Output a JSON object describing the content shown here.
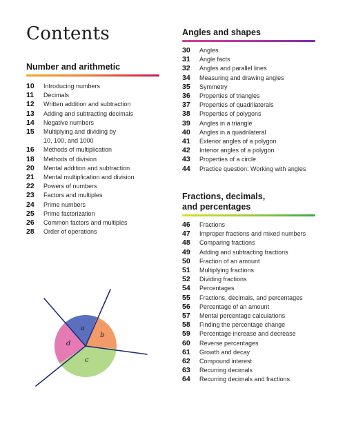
{
  "page_title": "Contents",
  "sections": {
    "number": {
      "title": "Number and arithmetic",
      "items": [
        {
          "page": "10",
          "label": "Introducing numbers"
        },
        {
          "page": "11",
          "label": "Decimals"
        },
        {
          "page": "12",
          "label": "Written addition and subtraction"
        },
        {
          "page": "13",
          "label": "Adding and subtracting decimals"
        },
        {
          "page": "14",
          "label": "Negative numbers"
        },
        {
          "page": "15",
          "label": "Multiplying and dividing by\n10, 100, and 1000"
        },
        {
          "page": "16",
          "label": "Methods of multiplication"
        },
        {
          "page": "18",
          "label": "Methods of division"
        },
        {
          "page": "20",
          "label": "Mental addition and subtraction"
        },
        {
          "page": "21",
          "label": "Mental multiplication and division"
        },
        {
          "page": "22",
          "label": "Powers of numbers"
        },
        {
          "page": "23",
          "label": "Factors and multiples"
        },
        {
          "page": "24",
          "label": "Prime numbers"
        },
        {
          "page": "25",
          "label": "Prime factorization"
        },
        {
          "page": "26",
          "label": "Common factors and multiples"
        },
        {
          "page": "28",
          "label": "Order of operations"
        }
      ]
    },
    "angles": {
      "title": "Angles and shapes",
      "items": [
        {
          "page": "30",
          "label": "Angles"
        },
        {
          "page": "31",
          "label": "Angle facts"
        },
        {
          "page": "32",
          "label": "Angles and parallel lines"
        },
        {
          "page": "34",
          "label": "Measuring and drawing angles"
        },
        {
          "page": "35",
          "label": "Symmetry"
        },
        {
          "page": "36",
          "label": "Properties of triangles"
        },
        {
          "page": "37",
          "label": "Properties of quadrilaterals"
        },
        {
          "page": "38",
          "label": "Properties of polygons"
        },
        {
          "page": "39",
          "label": "Angles in a triangle"
        },
        {
          "page": "40",
          "label": "Angles in a quadrilateral"
        },
        {
          "page": "41",
          "label": "Exterior angles of a polygon"
        },
        {
          "page": "42",
          "label": "Interior angles of a polygon"
        },
        {
          "page": "43",
          "label": "Properties of a circle"
        },
        {
          "page": "44",
          "label": "Practice question: Working with angles"
        }
      ]
    },
    "fractions": {
      "title_line1": "Fractions, decimals,",
      "title_line2": "and percentages",
      "items": [
        {
          "page": "46",
          "label": "Fractions"
        },
        {
          "page": "47",
          "label": "Improper fractions and mixed numbers"
        },
        {
          "page": "48",
          "label": "Comparing fractions"
        },
        {
          "page": "49",
          "label": "Adding and subtracting fractions"
        },
        {
          "page": "50",
          "label": "Fraction of an amount"
        },
        {
          "page": "51",
          "label": "Multiplying fractions"
        },
        {
          "page": "52",
          "label": "Dividing fractions"
        },
        {
          "page": "54",
          "label": "Percentages"
        },
        {
          "page": "55",
          "label": "Fractions, decimals, and percentages"
        },
        {
          "page": "56",
          "label": "Percentage of an amount"
        },
        {
          "page": "57",
          "label": "Mental percentage calculations"
        },
        {
          "page": "58",
          "label": "Finding the percentage change"
        },
        {
          "page": "59",
          "label": "Percentage increase and decrease"
        },
        {
          "page": "60",
          "label": "Reverse percentages"
        },
        {
          "page": "61",
          "label": "Growth and decay"
        },
        {
          "page": "62",
          "label": "Compound interest"
        },
        {
          "page": "63",
          "label": "Recurring decimals"
        },
        {
          "page": "64",
          "label": "Recurring decimals and fractions"
        }
      ]
    }
  },
  "diagram": {
    "labels": {
      "a": "a",
      "b": "b",
      "c": "c",
      "d": "d"
    },
    "colors": {
      "a": "#5b6fbf",
      "b": "#f29a68",
      "c": "#b3d98a",
      "d": "#e57ab5",
      "lines": "#1f2f7a"
    }
  },
  "colors": {
    "rule_number": [
      "#f5a623",
      "#e8393d",
      "#c2185b"
    ],
    "rule_angles": [
      "#d2409a",
      "#7e2fa6"
    ],
    "rule_fractions": [
      "#d7de2a",
      "#3aa944"
    ]
  }
}
